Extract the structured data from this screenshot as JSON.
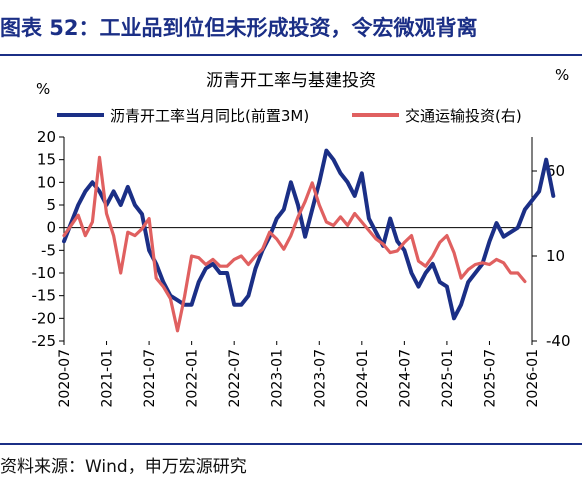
{
  "figure": {
    "title": "图表 52：工业品到位但未形成投资，令宏微观背离",
    "source": "资料来源：Wind，申万宏源研究"
  },
  "colors": {
    "series_blue": "#1b2f86",
    "series_red": "#e06060",
    "axis": "#000000"
  },
  "chart_data": {
    "type": "line",
    "title": "沥青开工率与基建投资",
    "left_unit": "%",
    "right_unit": "%",
    "x_ticks": [
      "2020-07",
      "2021-01",
      "2021-07",
      "2022-01",
      "2022-07",
      "2023-01",
      "2023-07",
      "2024-01",
      "2024-07",
      "2025-01",
      "2025-07",
      "2026-01"
    ],
    "x_start": "2020-07",
    "y_left": {
      "min": -25,
      "max": 20,
      "ticks": [
        20,
        15,
        10,
        5,
        0,
        -5,
        -10,
        -15,
        -20,
        -25
      ]
    },
    "y_right": {
      "min": -40,
      "max": 80,
      "ticks": [
        60,
        10,
        -40
      ]
    },
    "series": [
      {
        "name": "沥青开工率当月同比(前置3M)",
        "axis": "left",
        "color": "#1b2f86",
        "points": [
          [
            0,
            -3
          ],
          [
            1,
            1
          ],
          [
            2,
            5
          ],
          [
            3,
            8
          ],
          [
            4,
            10
          ],
          [
            5,
            8
          ],
          [
            6,
            5
          ],
          [
            7,
            8
          ],
          [
            8,
            5
          ],
          [
            9,
            9
          ],
          [
            10,
            5
          ],
          [
            11,
            3
          ],
          [
            12,
            -5
          ],
          [
            13,
            -8
          ],
          [
            14,
            -12
          ],
          [
            15,
            -15
          ],
          [
            16,
            -16
          ],
          [
            17,
            -17
          ],
          [
            18,
            -17
          ],
          [
            19,
            -12
          ],
          [
            20,
            -9
          ],
          [
            21,
            -8
          ],
          [
            22,
            -10
          ],
          [
            23,
            -10
          ],
          [
            24,
            -17
          ],
          [
            25,
            -17
          ],
          [
            26,
            -15
          ],
          [
            27,
            -9
          ],
          [
            28,
            -5
          ],
          [
            29,
            -2
          ],
          [
            30,
            2
          ],
          [
            31,
            4
          ],
          [
            32,
            10
          ],
          [
            33,
            5
          ],
          [
            34,
            -2
          ],
          [
            35,
            4
          ],
          [
            36,
            10
          ],
          [
            37,
            17
          ],
          [
            38,
            15
          ],
          [
            39,
            12
          ],
          [
            40,
            10
          ],
          [
            41,
            7
          ],
          [
            42,
            12
          ],
          [
            43,
            2
          ],
          [
            44,
            -1
          ],
          [
            45,
            -4
          ],
          [
            46,
            2
          ],
          [
            47,
            -3
          ],
          [
            48,
            -5
          ],
          [
            49,
            -10
          ],
          [
            50,
            -13
          ],
          [
            51,
            -10
          ],
          [
            52,
            -8
          ],
          [
            53,
            -12
          ],
          [
            54,
            -13
          ],
          [
            55,
            -20
          ],
          [
            56,
            -17
          ],
          [
            57,
            -12
          ],
          [
            58,
            -10
          ],
          [
            59,
            -8
          ],
          [
            60,
            -3
          ],
          [
            61,
            1
          ],
          [
            62,
            -2
          ],
          [
            63,
            -1
          ],
          [
            64,
            0
          ],
          [
            65,
            4
          ],
          [
            66,
            6
          ],
          [
            67,
            8
          ],
          [
            68,
            15
          ],
          [
            69,
            7
          ]
        ]
      },
      {
        "name": "交通运输投资(右)",
        "axis": "right",
        "color": "#e06060",
        "points": [
          [
            0,
            22
          ],
          [
            1,
            28
          ],
          [
            2,
            34
          ],
          [
            3,
            22
          ],
          [
            4,
            30
          ],
          [
            5,
            68
          ],
          [
            6,
            35
          ],
          [
            7,
            22
          ],
          [
            8,
            0
          ],
          [
            9,
            24
          ],
          [
            10,
            22
          ],
          [
            11,
            26
          ],
          [
            12,
            32
          ],
          [
            13,
            -3
          ],
          [
            14,
            -8
          ],
          [
            15,
            -15
          ],
          [
            16,
            -34
          ],
          [
            17,
            -14
          ],
          [
            18,
            10
          ],
          [
            19,
            9
          ],
          [
            20,
            5
          ],
          [
            21,
            8
          ],
          [
            22,
            4
          ],
          [
            23,
            4
          ],
          [
            24,
            8
          ],
          [
            25,
            10
          ],
          [
            26,
            5
          ],
          [
            27,
            10
          ],
          [
            28,
            14
          ],
          [
            29,
            24
          ],
          [
            30,
            20
          ],
          [
            31,
            14
          ],
          [
            32,
            22
          ],
          [
            33,
            33
          ],
          [
            34,
            42
          ],
          [
            35,
            53
          ],
          [
            36,
            40
          ],
          [
            37,
            30
          ],
          [
            38,
            28
          ],
          [
            39,
            33
          ],
          [
            40,
            28
          ],
          [
            41,
            35
          ],
          [
            42,
            30
          ],
          [
            43,
            25
          ],
          [
            44,
            20
          ],
          [
            45,
            17
          ],
          [
            46,
            12
          ],
          [
            47,
            13
          ],
          [
            48,
            18
          ],
          [
            49,
            22
          ],
          [
            50,
            7
          ],
          [
            51,
            4
          ],
          [
            52,
            10
          ],
          [
            53,
            18
          ],
          [
            54,
            22
          ],
          [
            55,
            12
          ],
          [
            56,
            -3
          ],
          [
            57,
            2
          ],
          [
            58,
            5
          ],
          [
            59,
            6
          ],
          [
            60,
            5
          ],
          [
            61,
            8
          ],
          [
            62,
            6
          ],
          [
            63,
            0
          ],
          [
            64,
            0
          ],
          [
            65,
            -5
          ]
        ]
      }
    ],
    "grid": false,
    "legend_position": "top"
  }
}
